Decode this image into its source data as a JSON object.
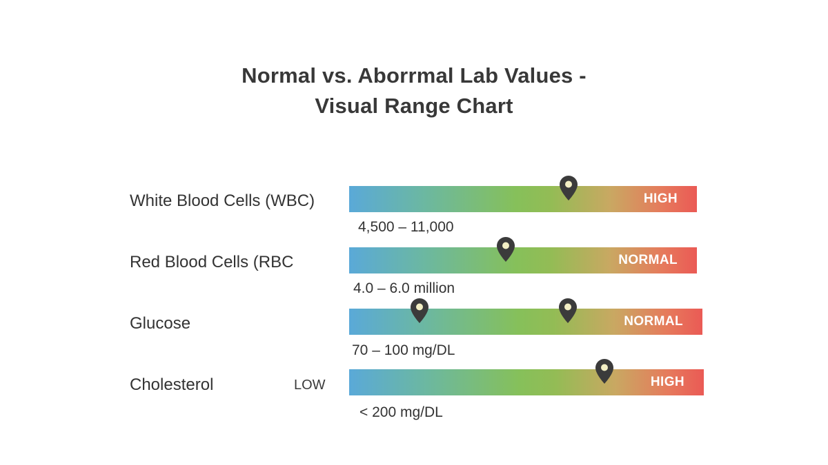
{
  "title": {
    "line1": "Normal vs. Aborrmal Lab Values -",
    "line2": "Visual Range Chart"
  },
  "chart_data": {
    "type": "range",
    "rows": [
      {
        "label": "White Blood Cells (WBC)",
        "range_text": "4,500 – 11,000",
        "status": "HIGH",
        "side_label": "",
        "markers": [
          0.63
        ]
      },
      {
        "label": "Red Blood Cells (RBC",
        "range_text": "4.0 – 6.0 million",
        "status": "NORMAL",
        "side_label": "",
        "markers": [
          0.45
        ]
      },
      {
        "label": "Glucose",
        "range_text": "70 – 100 mg/DL",
        "status": "NORMAL",
        "side_label": "",
        "markers": [
          0.2,
          0.62
        ]
      },
      {
        "label": "Cholesterol",
        "range_text": "< 200 mg/DL",
        "status": "HIGH",
        "side_label": "LOW",
        "markers": [
          0.72
        ]
      }
    ],
    "colors": {
      "low": "#5aa9d8",
      "normal": "#86c05a",
      "high": "#ea5a55",
      "marker": "#3b3b3b"
    }
  }
}
